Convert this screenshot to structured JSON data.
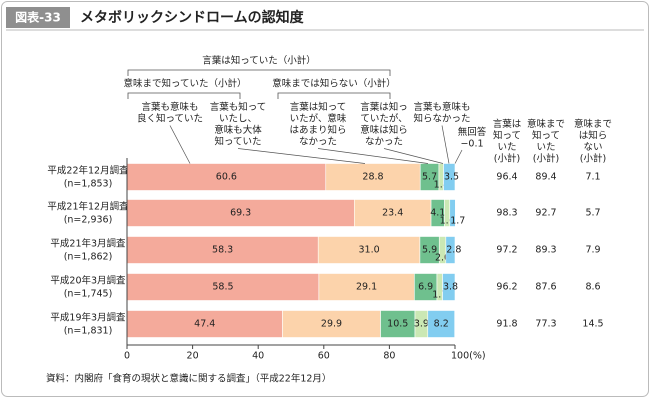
{
  "header": {
    "label": "図表-33",
    "title": "メタボリックシンドロームの認知度"
  },
  "chart_data": {
    "type": "stacked-bar-horizontal",
    "categories": [
      "平成22年12月調査",
      "平成21年12月調査",
      "平成21年3月調査",
      "平成20年3月調査",
      "平成19年3月調査"
    ],
    "n_labels": [
      "(n=1,853)",
      "(n=2,936)",
      "(n=1,862)",
      "(n=1,745)",
      "(n=1,831)"
    ],
    "series": [
      {
        "name": "言葉も意味も\n良く知っていた",
        "color": "#f4aa9b",
        "values": [
          60.6,
          69.3,
          58.3,
          58.5,
          47.4
        ],
        "value_labels": [
          "60.6",
          "69.3",
          "58.3",
          "58.5",
          "47.4"
        ]
      },
      {
        "name": "言葉も知って\nいたし、\n意味も大体\n知っていた",
        "color": "#fcd3ab",
        "values": [
          28.8,
          23.4,
          31.0,
          29.1,
          29.9
        ],
        "value_labels": [
          "28.8",
          "23.4",
          "31.0",
          "29.1",
          "29.9"
        ]
      },
      {
        "name": "言葉は知って\nいたが、意味\nはあまり知ら\nなかった",
        "color": "#6fc08e",
        "values": [
          5.7,
          4.1,
          5.9,
          6.9,
          10.5
        ],
        "value_labels": [
          "5.7",
          "4.1",
          "5.9",
          "6.9",
          "10.5"
        ]
      },
      {
        "name": "言葉は知っ\nていたが、\n意味は知ら\nなかった",
        "color": "#cbe8b4",
        "values": [
          1.4,
          1.6,
          2.0,
          1.7,
          3.9
        ],
        "value_labels": [
          "1.4",
          "1.6",
          "2.0",
          "1.7",
          "3.9"
        ]
      },
      {
        "name": "言葉も意味も\n知らなかった",
        "color": "#82cdf0",
        "values": [
          3.5,
          1.7,
          2.8,
          3.8,
          8.2
        ],
        "value_labels": [
          "3.5",
          "1.7",
          "2.8",
          "3.8",
          "8.2"
        ]
      }
    ],
    "annotations": {
      "no_answer": "無回答\n−0.1",
      "bracket_all": "言葉は知っていた（小計）",
      "bracket_meaning": "意味まで知っていた（小計）",
      "bracket_not": "意味までは知らない（小計）"
    },
    "xlim": [
      0,
      100
    ],
    "xticks": [
      0,
      20,
      40,
      60,
      80,
      {
        "value": 100,
        "label": "100(%)"
      }
    ],
    "subtotals": {
      "headers": [
        "言葉は\n知って\nいた\n(小計)",
        "意味まで\n知って\nいた\n(小計)",
        "意味まで\nは知ら\nない\n(小計)"
      ],
      "rows": [
        [
          96.4,
          89.4,
          7.1
        ],
        [
          98.3,
          92.7,
          5.7
        ],
        [
          97.2,
          89.3,
          7.9
        ],
        [
          96.2,
          87.6,
          8.6
        ],
        [
          91.8,
          77.3,
          14.5
        ]
      ]
    },
    "source": "資料：内閣府「食育の現状と意識に関する調査」（平成22年12月）"
  }
}
